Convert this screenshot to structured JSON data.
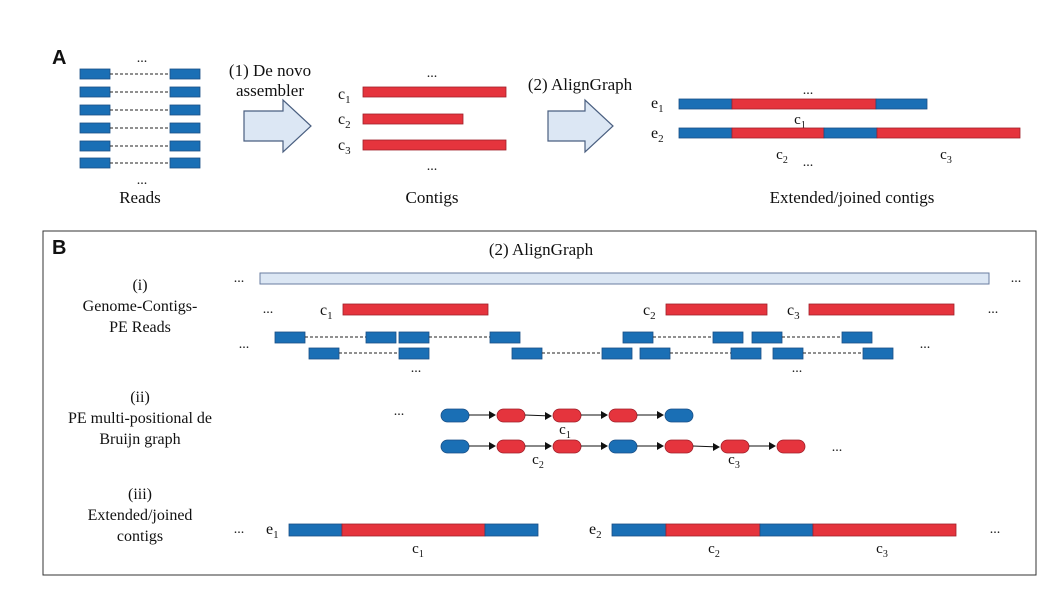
{
  "panel_a": {
    "label": "A",
    "reads_label": "Reads",
    "step1_line1": "(1) De novo",
    "step1_line2": "assembler",
    "contigs_label": "Contigs",
    "step2_label": "(2) AlignGraph",
    "extended_label": "Extended/joined contigs",
    "ellipsis": "...",
    "c": "c",
    "e": "e",
    "sub1": "1",
    "sub2": "2",
    "sub3": "3"
  },
  "panel_b": {
    "label": "B",
    "title": "(2) AlignGraph",
    "step_i_line1": "(i)",
    "step_i_line2": "Genome-Contigs-",
    "step_i_line3": "PE Reads",
    "step_ii_line1": "(ii)",
    "step_ii_line2": "PE multi-positional de",
    "step_ii_line3": "Bruijn graph",
    "step_iii_line1": "(iii)",
    "step_iii_line2": "Extended/joined",
    "step_iii_line3": "contigs",
    "ellipsis": "...",
    "c": "c",
    "e": "e",
    "sub1": "1",
    "sub2": "2",
    "sub3": "3"
  },
  "colors": {
    "read_blue": "#1a6fb5",
    "contig_red": "#e5343d",
    "arrow_fill": "#dce7f4",
    "genome_fill": "#dce7f4"
  }
}
